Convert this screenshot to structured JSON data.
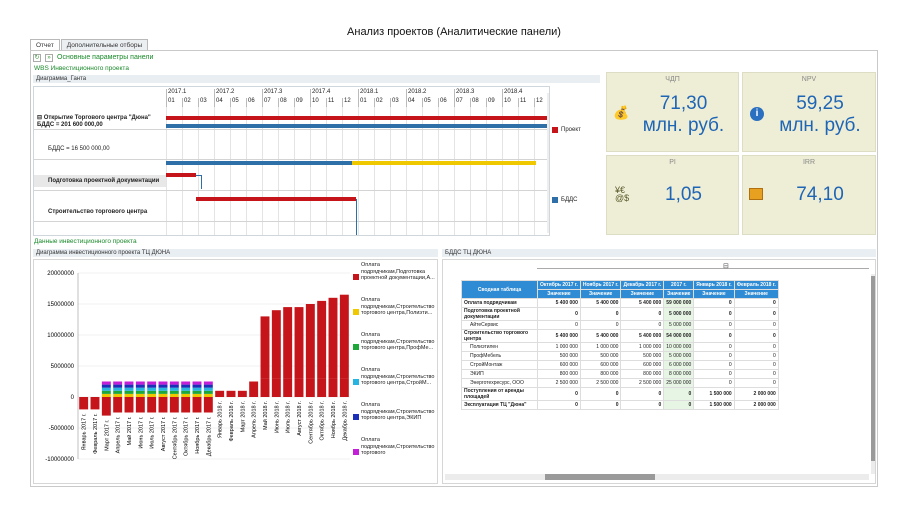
{
  "title": "Анализ проектов (Аналитические панели)",
  "tabs": [
    "Отчет",
    "Дополнительные отборы"
  ],
  "toolbar": {
    "label": "Основные параметры панели"
  },
  "sections": {
    "wbs": "WBS Инвестиционного проекта",
    "gantt": "Диаграмма_Ганта",
    "invest": "Данные инвестиционного проекта",
    "chart": "Диаграмма инвестиционного проекта ТЦ ДЮНА",
    "bdds": "БДДС ТЦ ДЮНА"
  },
  "gantt": {
    "years": [
      "2017.1",
      "2017.2",
      "2017.3",
      "2017.4",
      "2018.1",
      "2018.2",
      "2018.3",
      "2018.4"
    ],
    "months": [
      "01",
      "02",
      "03",
      "04",
      "05",
      "06",
      "07",
      "08",
      "09",
      "10",
      "11",
      "12",
      "01",
      "02",
      "03",
      "04",
      "05",
      "06",
      "07",
      "08",
      "09",
      "10",
      "11",
      "12"
    ],
    "rows": [
      "Открытие Торгового центра \"Дюна\"",
      "БДДС = 201 600 000,00",
      "БДДС = 16 500 000,00",
      "Подготовка проектной документации",
      "Строительство торгового центра"
    ],
    "legend": [
      "Проект",
      "БДДС"
    ]
  },
  "kpis": [
    {
      "label": "ЧДП",
      "value": "71,30",
      "unit": "млн. руб.",
      "icon": "coins-icon"
    },
    {
      "label": "NPV",
      "value": "59,25",
      "unit": "млн. руб.",
      "icon": "info-icon"
    },
    {
      "label": "PI",
      "value": "1,05",
      "icon": "currency-icon"
    },
    {
      "label": "IRR",
      "value": "74,10",
      "icon": "chart-icon"
    }
  ],
  "colors": {
    "red": "#c5141a",
    "blue": "#2f6fa8",
    "yellow": "#f0c800",
    "green": "#1fa83a",
    "cyan": "#27b4e0",
    "navy": "#1c2fb8",
    "magenta": "#c41fd8",
    "header": "#2e8bd4",
    "kpi": "#eeeed6"
  },
  "chart_data": {
    "type": "bar",
    "yticks": [
      "20000000",
      "15000000",
      "10000000",
      "5000000",
      "0",
      "-5000000",
      "-10000000"
    ],
    "ylim": [
      -10000000,
      20000000
    ],
    "categories": [
      "Январь 2017 г.",
      "Февраль 2017 г.",
      "Март 2017 г.",
      "Апрель 2017 г.",
      "Май 2017 г.",
      "Июнь 2017 г.",
      "Июль 2017 г.",
      "Август 2017 г.",
      "Сентябрь 2017 г.",
      "Октябрь 2017 г.",
      "Ноябрь 2017 г.",
      "Декабрь 2017 г.",
      "Январь 2018 г.",
      "Февраль 2018 г.",
      "Март 2018 г.",
      "Апрель 2018 г.",
      "Май 2018 г.",
      "Июнь 2018 г.",
      "Июль 2018 г.",
      "Август 2018 г.",
      "Сентябрь 2018 г.",
      "Октябрь 2018 г.",
      "Ноябрь 2018 г.",
      "Декабрь 2018 г."
    ],
    "xlabels": [
      "Январь 2017 г.",
      "Февраль 2017 г.",
      "Март 2017 г.",
      "Апрель 2017 г.",
      "Май 2017 г.",
      "Июнь 2017 г.",
      "Июль 2017 г.",
      "Август 2017 г.",
      "Сентябрь 2017 г.",
      "Октябрь 2017 г.",
      "Ноябрь 2017 г.",
      "Декабрь 2017 г.",
      "Январь 2018 г.",
      "Февраль 2018 г.",
      "Март 2018 г.",
      "Апрель 2018 г.",
      "Май 2018 г.",
      "Июнь 2018 г.",
      "Июль 2018 г.",
      "Август 2018 г.",
      "Сентябрь 2018 г.",
      "Октябрь 2018 г.",
      "Ноябрь 2018 г.",
      "Декабрь 2018 г."
    ],
    "series": [
      {
        "name": "Оплата подрядчикам,Подготовка проектной документации,А...",
        "color": "#c5141a",
        "values": [
          -2000000,
          -2000000,
          -3000000,
          -2500000,
          -2500000,
          -2500000,
          -2500000,
          -2500000,
          -2500000,
          -2500000,
          -2500000,
          -2500000,
          1000000,
          1000000,
          1000000,
          2500000,
          3000000,
          3000000,
          3000000,
          3000000,
          3000000,
          3000000,
          3000000,
          3000000
        ]
      },
      {
        "name": "Оплата подрядчикам,Строительство торгового центра,Полиэти...",
        "color": "#f0c800",
        "values": [
          0,
          0,
          500000,
          500000,
          500000,
          500000,
          500000,
          500000,
          500000,
          500000,
          500000,
          500000,
          0,
          0,
          0,
          0,
          0,
          0,
          0,
          0,
          0,
          0,
          0,
          0
        ]
      },
      {
        "name": "Оплата подрядчикам,Строительство торгового центра,ПрофМе...",
        "color": "#1fa83a",
        "values": [
          0,
          0,
          500000,
          500000,
          500000,
          500000,
          500000,
          500000,
          500000,
          500000,
          500000,
          500000,
          0,
          0,
          0,
          0,
          0,
          0,
          0,
          0,
          0,
          0,
          0,
          0
        ]
      },
      {
        "name": "Оплата подрядчикам,Строительство торгового центра,СтройМ...",
        "color": "#27b4e0",
        "values": [
          0,
          0,
          500000,
          500000,
          500000,
          500000,
          500000,
          500000,
          500000,
          500000,
          500000,
          500000,
          0,
          0,
          0,
          0,
          0,
          0,
          0,
          0,
          0,
          0,
          0,
          0
        ]
      },
      {
        "name": "Оплата подрядчикам,Строительство торгового центра,ЭКИП",
        "color": "#1c2fb8",
        "values": [
          0,
          0,
          500000,
          500000,
          500000,
          500000,
          500000,
          500000,
          500000,
          500000,
          500000,
          500000,
          0,
          0,
          0,
          0,
          0,
          0,
          0,
          0,
          0,
          0,
          0,
          0
        ]
      },
      {
        "name": "Оплата подрядчикам,Строительство торгового",
        "color": "#c41fd8",
        "values": [
          0,
          0,
          500000,
          500000,
          500000,
          500000,
          500000,
          500000,
          500000,
          500000,
          500000,
          500000,
          0,
          0,
          0,
          0,
          0,
          0,
          0,
          0,
          0,
          0,
          0,
          0
        ]
      }
    ],
    "cumulative_top": [
      -2000000,
      -2000000,
      1000000,
      1000000,
      1000000,
      1000000,
      1000000,
      1000000,
      1000000,
      1000000,
      1000000,
      1000000,
      1000000,
      1000000,
      1000000,
      2500000,
      13000000,
      14000000,
      14500000,
      14500000,
      15000000,
      15500000,
      16000000,
      16500000
    ]
  },
  "pivot": {
    "title": "Сводная таблица",
    "headers": [
      "Октябрь 2017 г.",
      "Ноябрь 2017 г.",
      "Декабрь 2017 г.",
      "2017 г.",
      "Январь 2018 г.",
      "Февраль 2018 г."
    ],
    "sub": "Значение",
    "rows": [
      {
        "label": "Оплата подрядчикам",
        "v": [
          "5 400 000",
          "5 400 000",
          "5 400 000",
          "59 000 000",
          "0",
          "0"
        ],
        "bold": true
      },
      {
        "label": "Подготовка проектной документации",
        "v": [
          "0",
          "0",
          "0",
          "5 000 000",
          "0",
          "0"
        ],
        "bold": true
      },
      {
        "label": "АйтеСервис",
        "v": [
          "0",
          "0",
          "0",
          "5 000 000",
          "0",
          "0"
        ]
      },
      {
        "label": "Строительство торгового центра",
        "v": [
          "5 400 000",
          "5 400 000",
          "5 400 000",
          "54 000 000",
          "0",
          "0"
        ],
        "bold": true
      },
      {
        "label": "Полиэтилен",
        "v": [
          "1 000 000",
          "1 000 000",
          "1 000 000",
          "10 000 000",
          "0",
          "0"
        ]
      },
      {
        "label": "ПрофМебель",
        "v": [
          "500 000",
          "500 000",
          "500 000",
          "5 000 000",
          "0",
          "0"
        ]
      },
      {
        "label": "СтройМонтаж",
        "v": [
          "600 000",
          "600 000",
          "600 000",
          "6 000 000",
          "0",
          "0"
        ]
      },
      {
        "label": "ЭКИП",
        "v": [
          "800 000",
          "800 000",
          "800 000",
          "8 000 000",
          "0",
          "0"
        ]
      },
      {
        "label": "Энерготехресурс, ООО",
        "v": [
          "2 500 000",
          "2 500 000",
          "2 500 000",
          "25 000 000",
          "0",
          "0"
        ]
      },
      {
        "label": "Поступления от аренды площадей",
        "v": [
          "0",
          "0",
          "0",
          "0",
          "1 500 000",
          "2 000 000"
        ],
        "bold": true
      },
      {
        "label": "Эксплуатация ТЦ \"Дюна\"",
        "v": [
          "0",
          "0",
          "0",
          "0",
          "1 500 000",
          "2 000 000"
        ],
        "bold": true
      }
    ]
  }
}
